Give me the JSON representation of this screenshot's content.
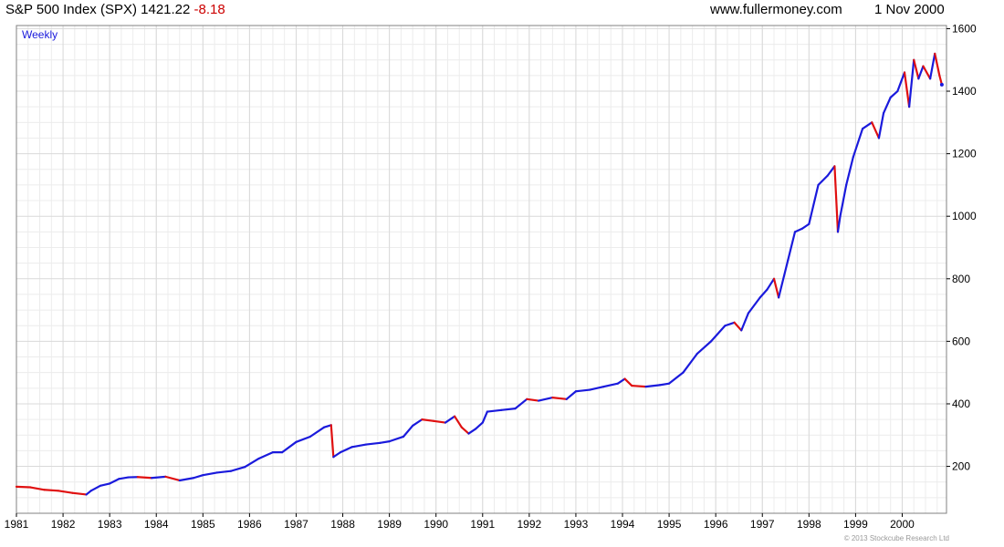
{
  "header": {
    "title": "S&P 500 Index (SPX) 1421.22",
    "change": "-8.18",
    "website": "www.fullermoney.com",
    "date": "1 Nov 2000"
  },
  "footer": {
    "copyright": "© 2013 Stockcube Research Ltd"
  },
  "colors": {
    "up": "#1a1adc",
    "down": "#e01010",
    "grid": "#d9d9d9",
    "change": "#cc0000"
  },
  "chart_data": {
    "type": "line",
    "period_label": "Weekly",
    "x_ticks": [
      "1981",
      "1982",
      "1983",
      "1984",
      "1985",
      "1986",
      "1987",
      "1988",
      "1989",
      "1990",
      "1991",
      "1992",
      "1993",
      "1994",
      "1995",
      "1996",
      "1997",
      "1998",
      "1999",
      "2000"
    ],
    "y_ticks": [
      200,
      400,
      600,
      800,
      1000,
      1200,
      1400,
      1600
    ],
    "xlim": [
      1981.0,
      2000.95
    ],
    "ylim": [
      50,
      1610
    ],
    "grid": true,
    "series": [
      {
        "x": [
          1981.0,
          1981.3,
          1981.6,
          1981.9,
          1982.2,
          1982.5,
          1982.6,
          1982.8,
          1983.0,
          1983.2,
          1983.4,
          1983.6,
          1983.9,
          1984.2,
          1984.5,
          1984.8,
          1985.0,
          1985.3,
          1985.6,
          1985.9,
          1986.2,
          1986.5,
          1986.7,
          1987.0,
          1987.3,
          1987.6,
          1987.75,
          1987.8,
          1987.95,
          1988.2,
          1988.5,
          1988.8,
          1989.0,
          1989.3,
          1989.5,
          1989.7,
          1989.95,
          1990.2,
          1990.4,
          1990.55,
          1990.7,
          1990.85,
          1991.0,
          1991.1,
          1991.4,
          1991.7,
          1991.95,
          1992.2,
          1992.5,
          1992.8,
          1993.0,
          1993.3,
          1993.6,
          1993.9,
          1994.05,
          1994.2,
          1994.5,
          1994.8,
          1995.0,
          1995.3,
          1995.6,
          1995.9,
          1996.2,
          1996.4,
          1996.55,
          1996.7,
          1996.95,
          1997.1,
          1997.25,
          1997.35,
          1997.55,
          1997.7,
          1997.85,
          1998.0,
          1998.2,
          1998.4,
          1998.55,
          1998.62,
          1998.67,
          1998.8,
          1998.95,
          1999.15,
          1999.35,
          1999.5,
          1999.6,
          1999.75,
          1999.9,
          2000.05,
          2000.15,
          2000.25,
          2000.35,
          2000.45,
          2000.6,
          2000.7,
          2000.8,
          2000.85
        ],
        "y": [
          135,
          133,
          125,
          122,
          115,
          110,
          122,
          138,
          145,
          160,
          165,
          166,
          163,
          167,
          155,
          163,
          172,
          180,
          185,
          198,
          225,
          245,
          245,
          278,
          295,
          325,
          332,
          230,
          245,
          262,
          270,
          275,
          280,
          295,
          330,
          350,
          345,
          340,
          360,
          325,
          305,
          320,
          340,
          375,
          380,
          385,
          415,
          410,
          420,
          415,
          440,
          445,
          455,
          465,
          480,
          458,
          455,
          460,
          465,
          500,
          560,
          600,
          650,
          660,
          635,
          690,
          740,
          765,
          800,
          740,
          860,
          950,
          960,
          975,
          1100,
          1130,
          1160,
          950,
          1000,
          1100,
          1190,
          1280,
          1300,
          1250,
          1330,
          1380,
          1400,
          1460,
          1350,
          1500,
          1440,
          1480,
          1440,
          1520,
          1450,
          1421
        ]
      }
    ]
  }
}
